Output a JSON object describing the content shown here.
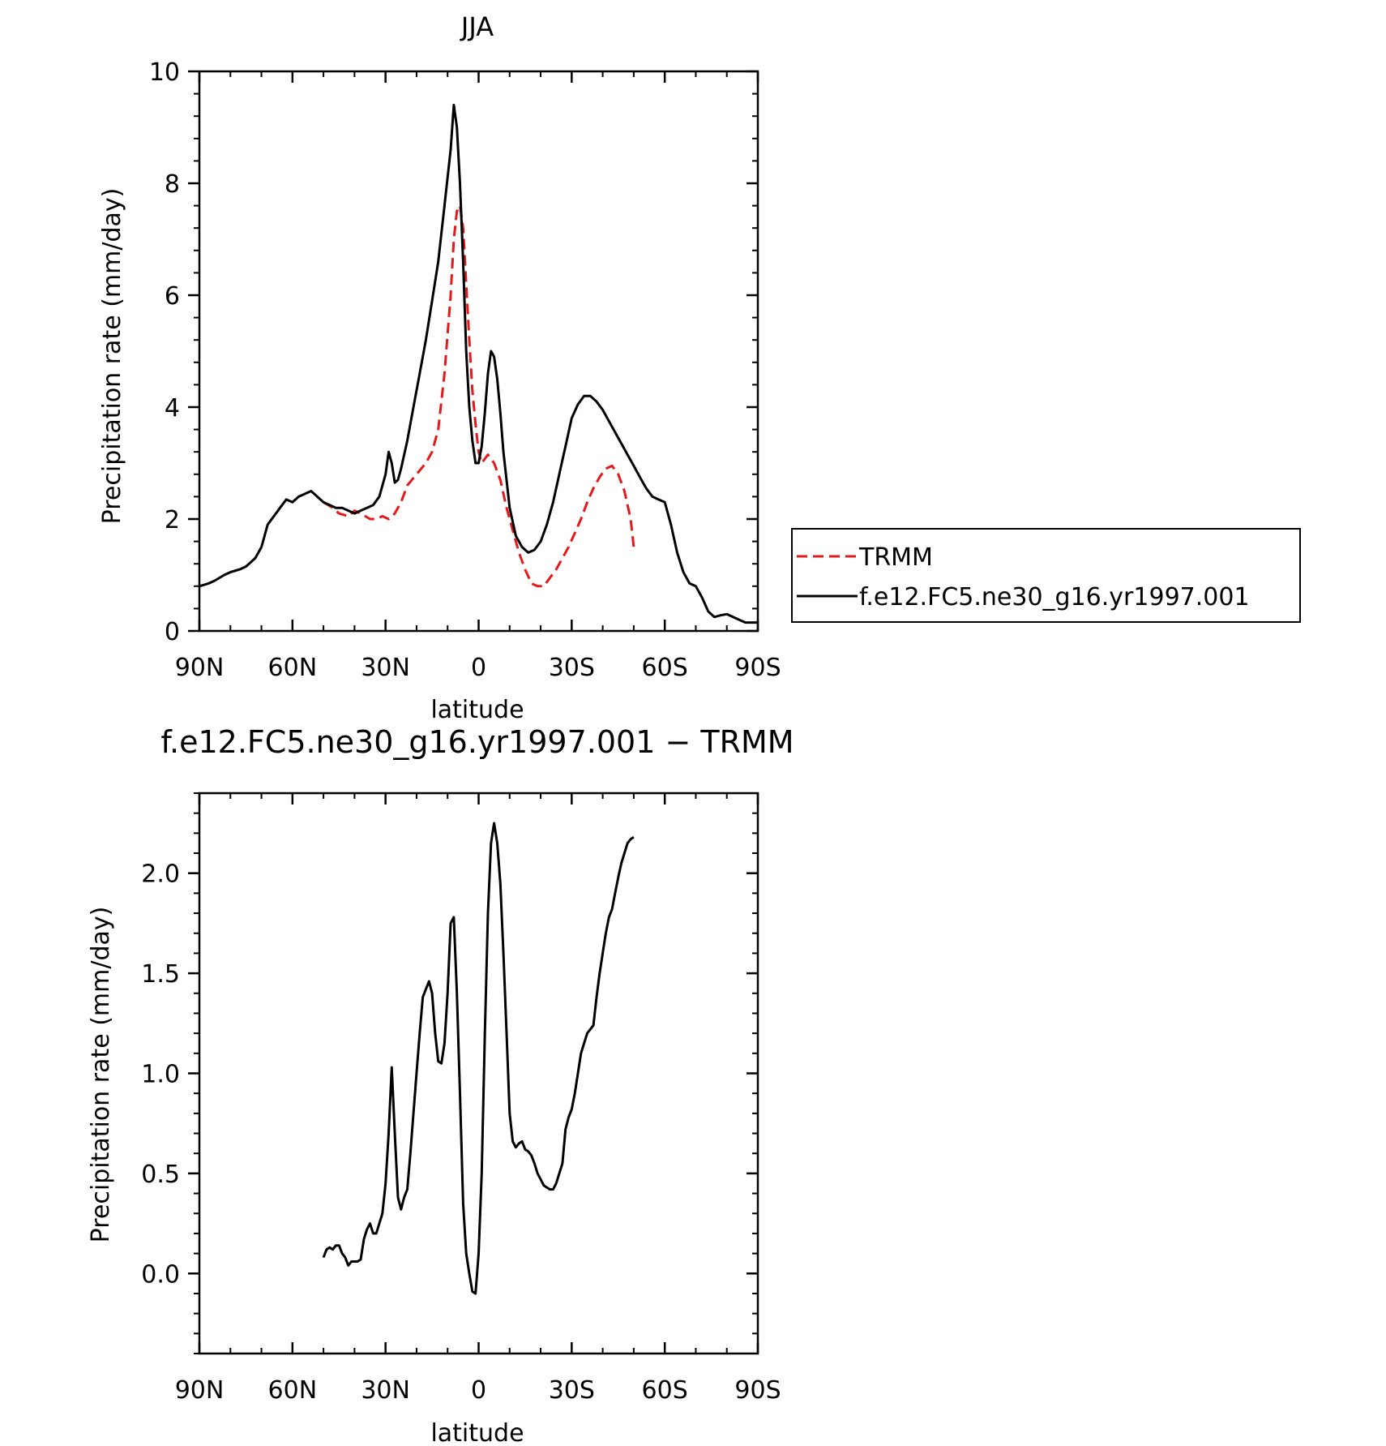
{
  "chart_data": [
    {
      "type": "line",
      "title": "JJA",
      "xlabel": "latitude",
      "ylabel": "Precipitation rate (mm/day)",
      "xlim": [
        90,
        -90
      ],
      "ylim": [
        0,
        10
      ],
      "x_ticks": [
        {
          "v": 90,
          "label": "90N"
        },
        {
          "v": 60,
          "label": "60N"
        },
        {
          "v": 30,
          "label": "30N"
        },
        {
          "v": 0,
          "label": "0"
        },
        {
          "v": -30,
          "label": "30S"
        },
        {
          "v": -60,
          "label": "60S"
        },
        {
          "v": -90,
          "label": "90S"
        }
      ],
      "y_ticks": [
        {
          "v": 0,
          "label": "0"
        },
        {
          "v": 2,
          "label": "2"
        },
        {
          "v": 4,
          "label": "4"
        },
        {
          "v": 6,
          "label": "6"
        },
        {
          "v": 8,
          "label": "8"
        },
        {
          "v": 10,
          "label": "10"
        }
      ],
      "legend_position": "right",
      "series": [
        {
          "name": "TRMM",
          "color": "#e31a1c",
          "dash": true,
          "x": [
            50,
            47,
            45,
            42,
            40,
            38,
            35,
            33,
            31,
            29,
            27,
            25,
            23,
            20,
            17,
            15,
            13,
            11,
            9,
            8,
            7,
            6,
            5,
            4,
            3,
            2,
            1,
            0,
            -1,
            -3,
            -5,
            -7,
            -9,
            -11,
            -13,
            -15,
            -17,
            -19,
            -21,
            -23,
            -25,
            -27,
            -29,
            -31,
            -33,
            -35,
            -37,
            -39,
            -41,
            -43,
            -45,
            -47,
            -49,
            -50
          ],
          "y": [
            2.3,
            2.2,
            2.1,
            2.05,
            2.15,
            2.1,
            2.0,
            2.0,
            2.05,
            2.0,
            2.1,
            2.3,
            2.6,
            2.8,
            3.0,
            3.2,
            3.6,
            4.6,
            6.0,
            7.0,
            7.5,
            7.6,
            7.2,
            6.2,
            5.2,
            4.3,
            3.7,
            3.2,
            3.0,
            3.15,
            3.0,
            2.7,
            2.2,
            1.8,
            1.4,
            1.1,
            0.85,
            0.8,
            0.8,
            0.95,
            1.1,
            1.3,
            1.5,
            1.75,
            2.0,
            2.3,
            2.55,
            2.75,
            2.9,
            2.95,
            2.8,
            2.5,
            2.0,
            1.5
          ]
        },
        {
          "name": "f.e12.FC5.ne30_g16.yr1997.001",
          "color": "#000000",
          "dash": false,
          "x": [
            90,
            87,
            85,
            82,
            80,
            77,
            75,
            72,
            70,
            68,
            66,
            64,
            62,
            60,
            58,
            56,
            54,
            52,
            50,
            48,
            46,
            44,
            42,
            40,
            38,
            36,
            34,
            32,
            30,
            29,
            28,
            27,
            26,
            25,
            23,
            21,
            19,
            17,
            15,
            13,
            11,
            9,
            8,
            7,
            6,
            5,
            4,
            3,
            2,
            1,
            0,
            -1,
            -2,
            -3,
            -4,
            -5,
            -6,
            -7,
            -8,
            -10,
            -12,
            -14,
            -16,
            -18,
            -20,
            -22,
            -24,
            -26,
            -28,
            -30,
            -32,
            -34,
            -36,
            -38,
            -40,
            -42,
            -44,
            -46,
            -48,
            -50,
            -52,
            -54,
            -56,
            -58,
            -60,
            -62,
            -64,
            -66,
            -68,
            -70,
            -72,
            -74,
            -76,
            -78,
            -80,
            -82,
            -84,
            -86,
            -88,
            -90
          ],
          "y": [
            0.8,
            0.85,
            0.9,
            1.0,
            1.05,
            1.1,
            1.15,
            1.3,
            1.5,
            1.9,
            2.05,
            2.2,
            2.35,
            2.3,
            2.4,
            2.45,
            2.5,
            2.4,
            2.3,
            2.25,
            2.2,
            2.2,
            2.15,
            2.1,
            2.15,
            2.2,
            2.25,
            2.4,
            2.8,
            3.2,
            3.0,
            2.65,
            2.7,
            2.9,
            3.4,
            4.0,
            4.6,
            5.2,
            5.9,
            6.6,
            7.6,
            8.6,
            9.4,
            9.0,
            8.0,
            6.6,
            5.0,
            4.0,
            3.4,
            3.0,
            3.0,
            3.3,
            3.9,
            4.6,
            5.0,
            4.9,
            4.5,
            3.9,
            3.2,
            2.2,
            1.7,
            1.5,
            1.4,
            1.45,
            1.6,
            1.9,
            2.3,
            2.8,
            3.3,
            3.8,
            4.05,
            4.2,
            4.2,
            4.1,
            3.95,
            3.75,
            3.55,
            3.35,
            3.15,
            2.95,
            2.75,
            2.55,
            2.4,
            2.35,
            2.3,
            1.9,
            1.4,
            1.05,
            0.85,
            0.8,
            0.6,
            0.35,
            0.25,
            0.28,
            0.3,
            0.25,
            0.2,
            0.15,
            0.15,
            0.15
          ]
        }
      ]
    },
    {
      "type": "line",
      "title": "f.e12.FC5.ne30_g16.yr1997.001 − TRMM",
      "xlabel": "latitude",
      "ylabel": "Precipitation rate (mm/day)",
      "xlim": [
        90,
        -90
      ],
      "ylim": [
        -0.4,
        2.4
      ],
      "x_ticks": [
        {
          "v": 90,
          "label": "90N"
        },
        {
          "v": 60,
          "label": "60N"
        },
        {
          "v": 30,
          "label": "30N"
        },
        {
          "v": 0,
          "label": "0"
        },
        {
          "v": -30,
          "label": "30S"
        },
        {
          "v": -60,
          "label": "60S"
        },
        {
          "v": -90,
          "label": "90S"
        }
      ],
      "y_ticks": [
        {
          "v": 0.0,
          "label": "0.0"
        },
        {
          "v": 0.5,
          "label": "0.5"
        },
        {
          "v": 1.0,
          "label": "1.0"
        },
        {
          "v": 1.5,
          "label": "1.5"
        },
        {
          "v": 2.0,
          "label": "2.0"
        }
      ],
      "series": [
        {
          "color": "#000000",
          "dash": false,
          "x": [
            50,
            49,
            48,
            47,
            46,
            45,
            44,
            43,
            42,
            41,
            40,
            39,
            38,
            37,
            36,
            35,
            34,
            33,
            32,
            31,
            30,
            29,
            28,
            27,
            26,
            25,
            24,
            23,
            22,
            21,
            20,
            19,
            18,
            17,
            16,
            15,
            14,
            13,
            12,
            11,
            10,
            9,
            8,
            7,
            6,
            5,
            4,
            3,
            2,
            1,
            0,
            -1,
            -2,
            -3,
            -4,
            -5,
            -6,
            -7,
            -8,
            -9,
            -10,
            -11,
            -12,
            -13,
            -14,
            -15,
            -16,
            -17,
            -18,
            -19,
            -20,
            -21,
            -22,
            -23,
            -24,
            -25,
            -26,
            -27,
            -28,
            -29,
            -30,
            -31,
            -32,
            -33,
            -34,
            -35,
            -36,
            -37,
            -38,
            -39,
            -40,
            -41,
            -42,
            -43,
            -44,
            -45,
            -46,
            -47,
            -48,
            -49,
            -50
          ],
          "y": [
            0.08,
            0.12,
            0.13,
            0.12,
            0.14,
            0.14,
            0.1,
            0.08,
            0.04,
            0.06,
            0.06,
            0.06,
            0.07,
            0.17,
            0.22,
            0.25,
            0.2,
            0.2,
            0.25,
            0.3,
            0.45,
            0.7,
            1.03,
            0.7,
            0.38,
            0.32,
            0.38,
            0.42,
            0.6,
            0.8,
            1.0,
            1.2,
            1.38,
            1.42,
            1.46,
            1.4,
            1.2,
            1.06,
            1.05,
            1.15,
            1.4,
            1.75,
            1.78,
            1.4,
            0.9,
            0.35,
            0.1,
            0.0,
            -0.09,
            -0.1,
            0.1,
            0.5,
            1.2,
            1.8,
            2.15,
            2.25,
            2.15,
            1.95,
            1.6,
            1.2,
            0.8,
            0.66,
            0.63,
            0.65,
            0.66,
            0.62,
            0.61,
            0.59,
            0.55,
            0.5,
            0.47,
            0.44,
            0.43,
            0.42,
            0.42,
            0.45,
            0.5,
            0.55,
            0.72,
            0.78,
            0.82,
            0.9,
            1.0,
            1.1,
            1.15,
            1.2,
            1.22,
            1.24,
            1.38,
            1.5,
            1.6,
            1.7,
            1.78,
            1.82,
            1.9,
            1.98,
            2.05,
            2.1,
            2.15,
            2.17,
            2.18
          ]
        }
      ]
    }
  ]
}
